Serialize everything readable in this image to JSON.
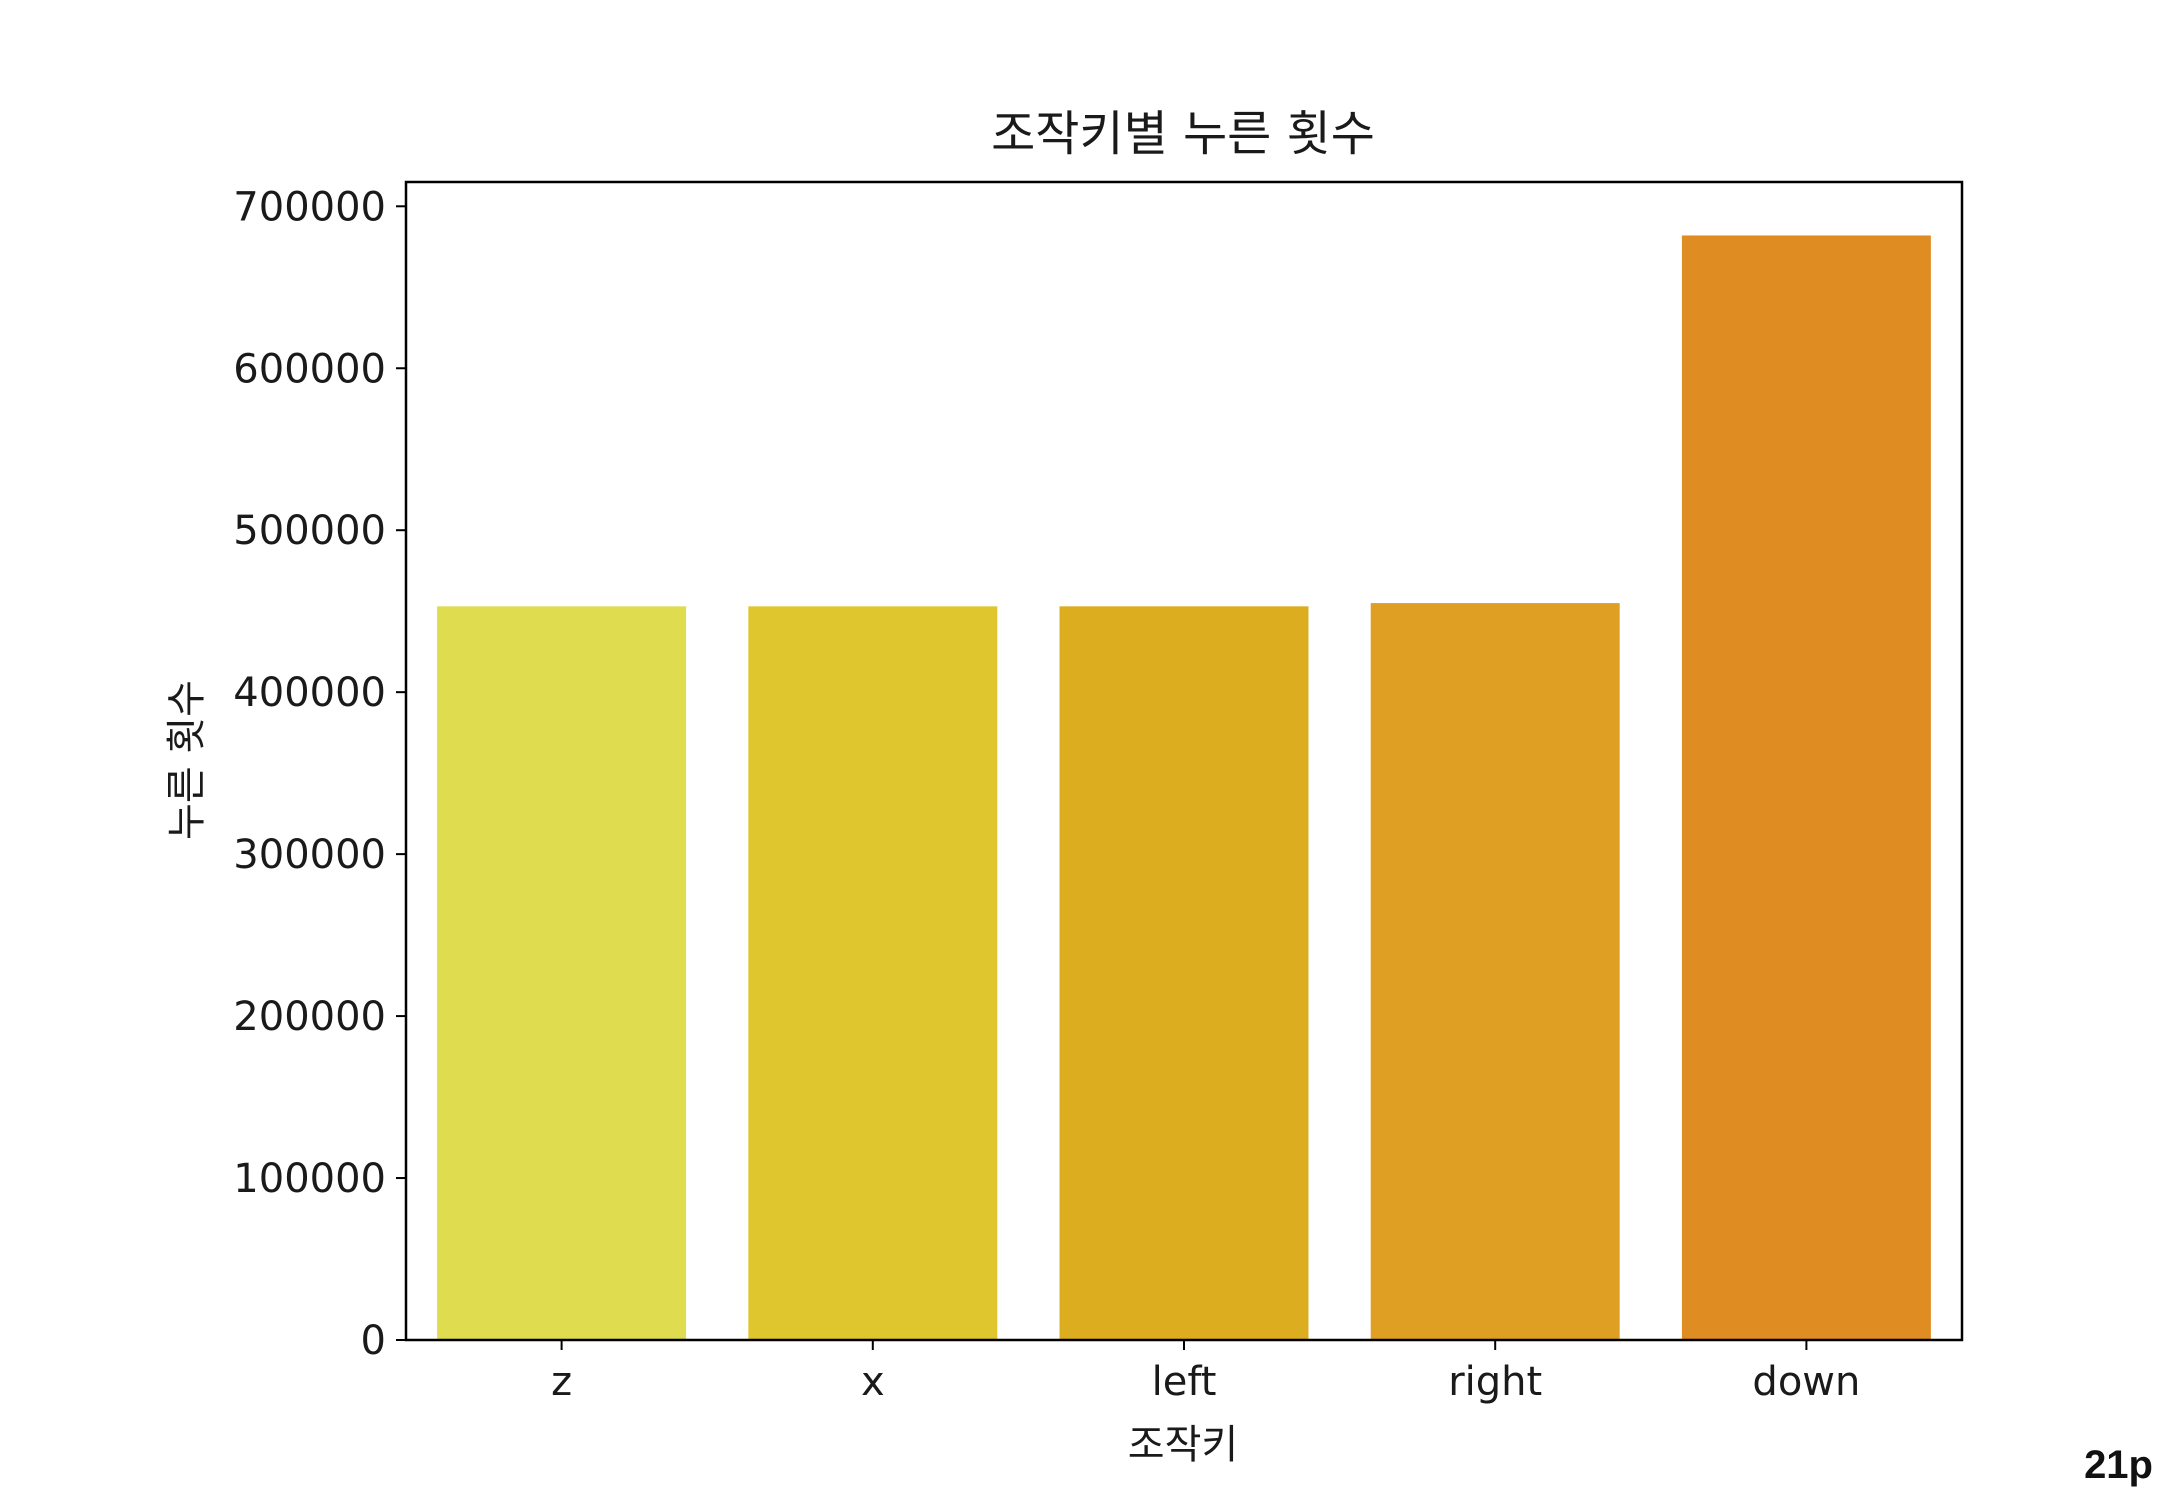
{
  "page_number": "21p",
  "chart_data": {
    "type": "bar",
    "title": "조작키별 누른 횟수",
    "xlabel": "조작키",
    "ylabel": "누른 횟수",
    "categories": [
      "z",
      "x",
      "left",
      "right",
      "down"
    ],
    "values": [
      453000,
      453000,
      453000,
      455000,
      682000
    ],
    "colors": [
      "#dfdc50",
      "#dfc52e",
      "#ddad20",
      "#df9f22",
      "#df8d22"
    ],
    "ylim": [
      0,
      715000
    ],
    "yticks": [
      0,
      100000,
      200000,
      300000,
      400000,
      500000,
      600000,
      700000
    ],
    "ytick_labels": [
      "0",
      "100000",
      "200000",
      "300000",
      "400000",
      "500000",
      "600000",
      "700000"
    ],
    "grid": false,
    "legend": "none"
  }
}
